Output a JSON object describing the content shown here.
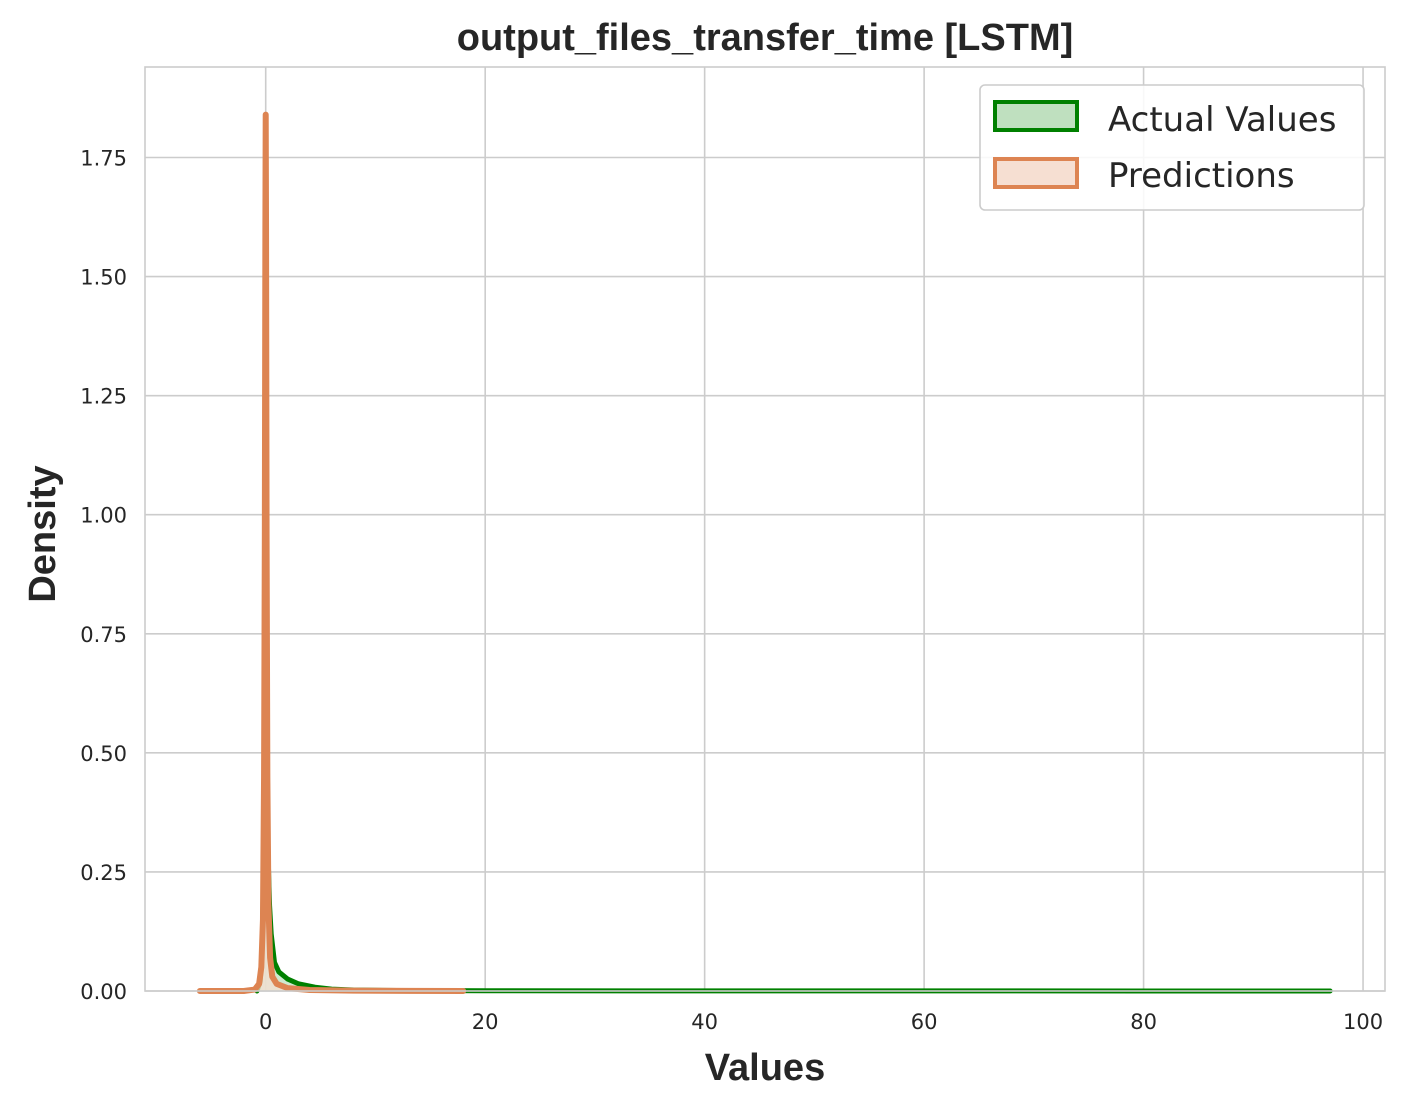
{
  "chart_data": {
    "type": "area",
    "title": "output_files_transfer_time [LSTM]",
    "xlabel": "Values",
    "ylabel": "Density",
    "xlim": [
      -11,
      102
    ],
    "ylim": [
      0,
      1.94
    ],
    "xticks": [
      0,
      20,
      40,
      60,
      80,
      100
    ],
    "xtick_labels": [
      "0",
      "20",
      "40",
      "60",
      "80",
      "100"
    ],
    "yticks": [
      0,
      0.25,
      0.5,
      0.75,
      1.0,
      1.25,
      1.5,
      1.75
    ],
    "ytick_labels": [
      "0.00",
      "0.25",
      "0.50",
      "0.75",
      "1.00",
      "1.25",
      "1.50",
      "1.75"
    ],
    "grid": true,
    "legend_position": "top-right",
    "series": [
      {
        "name": "Actual Values",
        "color": "#008000",
        "fill": "#bfe0bf",
        "x": [
          -0.8,
          -0.5,
          -0.3,
          -0.15,
          -0.05,
          0.0,
          0.05,
          0.12,
          0.2,
          0.35,
          0.5,
          0.8,
          1.2,
          2.0,
          3.0,
          4.5,
          6.0,
          8.0,
          12.0,
          20.0,
          40.0,
          60.0,
          80.0,
          97.0
        ],
        "y": [
          0.0,
          0.02,
          0.1,
          0.35,
          0.7,
          0.85,
          0.7,
          0.45,
          0.3,
          0.18,
          0.12,
          0.06,
          0.04,
          0.025,
          0.015,
          0.008,
          0.004,
          0.002,
          0.001,
          0.0005,
          0.0003,
          0.0002,
          0.0001,
          0.0
        ]
      },
      {
        "name": "Predictions",
        "color": "#dd8452",
        "fill": "#f6dfd2",
        "x": [
          -6.0,
          -2.0,
          -1.0,
          -0.6,
          -0.4,
          -0.25,
          -0.15,
          -0.08,
          -0.03,
          0.0,
          0.03,
          0.08,
          0.15,
          0.25,
          0.4,
          0.6,
          1.0,
          2.0,
          4.0,
          8.0,
          13.0,
          18.0
        ],
        "y": [
          0.0,
          0.0,
          0.003,
          0.015,
          0.05,
          0.15,
          0.45,
          0.95,
          1.6,
          1.84,
          1.6,
          0.95,
          0.45,
          0.18,
          0.07,
          0.03,
          0.015,
          0.006,
          0.002,
          0.0008,
          0.0002,
          0.0
        ]
      }
    ]
  }
}
